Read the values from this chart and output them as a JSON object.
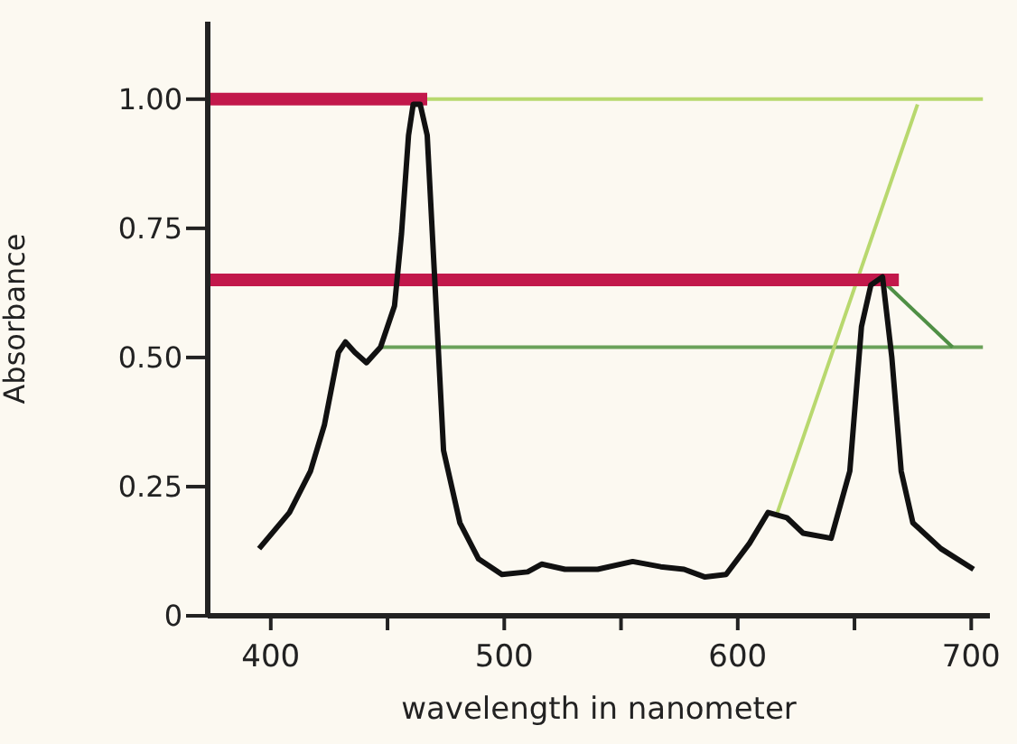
{
  "chart_data": {
    "type": "line",
    "xlabel": "wavelength in nanometer",
    "ylabel": "Absorbance",
    "xlim": [
      373,
      708
    ],
    "ylim": [
      0,
      1.15
    ],
    "xticks": [
      400,
      {
        "value": 450,
        "label": null
      },
      500,
      {
        "value": 550,
        "label": null
      },
      600,
      {
        "value": 650,
        "label": null
      },
      700
    ],
    "yticks": [
      0,
      0.25,
      {
        "value": 0.5,
        "label": "0.50"
      },
      0.75,
      {
        "value": 1,
        "label": "1.00"
      }
    ],
    "grid": false,
    "marker": "none",
    "line_style": "solid",
    "series": [
      {
        "color": "#b8d86e",
        "x": [
          465,
          705
        ],
        "values": [
          1,
          1
        ]
      },
      {
        "color": "#6aa25a",
        "x": [
          447,
          705
        ],
        "values": [
          0.52,
          0.52
        ]
      },
      {
        "color": "#b8d86e",
        "x": [
          617,
          677
        ],
        "values": [
          0.2,
          0.99
        ]
      },
      {
        "color": "#4f8f45",
        "x": [
          664,
          692
        ],
        "values": [
          0.64,
          0.52
        ]
      },
      {
        "color": "#111111",
        "x": [
          395,
          408,
          417,
          423,
          429,
          432,
          436,
          441,
          447,
          453,
          456,
          459,
          461,
          464,
          467,
          470,
          474,
          481,
          489,
          499,
          510,
          516,
          526,
          540,
          555,
          567,
          577,
          586,
          595,
          605,
          613,
          621,
          628,
          640,
          648,
          653,
          657,
          662,
          666,
          670,
          675,
          687,
          701
        ],
        "values": [
          0.13,
          0.2,
          0.28,
          0.37,
          0.51,
          0.53,
          0.51,
          0.49,
          0.52,
          0.6,
          0.74,
          0.93,
          0.99,
          0.99,
          0.93,
          0.67,
          0.32,
          0.18,
          0.11,
          0.08,
          0.085,
          0.1,
          0.09,
          0.09,
          0.105,
          0.095,
          0.09,
          0.075,
          0.08,
          0.14,
          0.2,
          0.19,
          0.16,
          0.15,
          0.28,
          0.56,
          0.64,
          0.656,
          0.5,
          0.28,
          0.18,
          0.13,
          0.09
        ]
      },
      {
        "color": "#c2184b",
        "x": [
          373,
          467
        ],
        "values": [
          1,
          1
        ]
      },
      {
        "color": "#c2184b",
        "x": [
          373,
          669
        ],
        "values": [
          0.65,
          0.65
        ]
      }
    ]
  }
}
